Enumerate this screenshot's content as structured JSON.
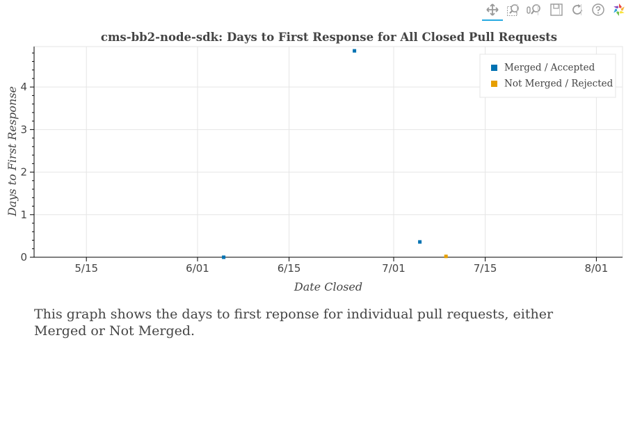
{
  "toolbar": {
    "tools": [
      {
        "icon": "pan-icon",
        "active": true
      },
      {
        "icon": "box-zoom-icon",
        "active": false
      },
      {
        "icon": "wheel-zoom-icon",
        "active": false
      },
      {
        "icon": "save-icon",
        "active": false
      },
      {
        "icon": "reset-icon",
        "active": false
      },
      {
        "icon": "help-icon",
        "active": false
      },
      {
        "icon": "bokeh-logo-icon",
        "active": false
      }
    ],
    "active_color": "#26aae1"
  },
  "chart_data": {
    "type": "scatter",
    "title": "cms-bb2-node-sdk: Days to First Response for All Closed Pull Requests",
    "xlabel": "Date Closed",
    "ylabel": "Days to First Response",
    "xlim": [
      "2021-05-07",
      "2021-08-05"
    ],
    "ylim": [
      0,
      4.95
    ],
    "x_ticks": [
      "2021-05-15",
      "2021-06-01",
      "2021-06-15",
      "2021-07-01",
      "2021-07-15",
      "2021-08-01"
    ],
    "x_tick_labels": [
      "5/15",
      "6/01",
      "6/15",
      "7/01",
      "7/15",
      "8/01"
    ],
    "y_ticks": [
      0,
      1,
      2,
      3,
      4
    ],
    "y_tick_labels": [
      "0",
      "1",
      "2",
      "3",
      "4"
    ],
    "grid": true,
    "legend_position": "top-right",
    "series": [
      {
        "name": "Merged / Accepted",
        "color": "#0072b2",
        "points": [
          {
            "x": "2021-06-05",
            "y": 0
          },
          {
            "x": "2021-06-25",
            "y": 4.85
          },
          {
            "x": "2021-07-05",
            "y": 0.36
          }
        ]
      },
      {
        "name": "Not Merged / Rejected",
        "color": "#e69f00",
        "points": [
          {
            "x": "2021-07-09",
            "y": 0.02
          }
        ]
      }
    ]
  },
  "description": "This graph shows the days to first reponse for individual pull requests, either Merged or Not Merged."
}
